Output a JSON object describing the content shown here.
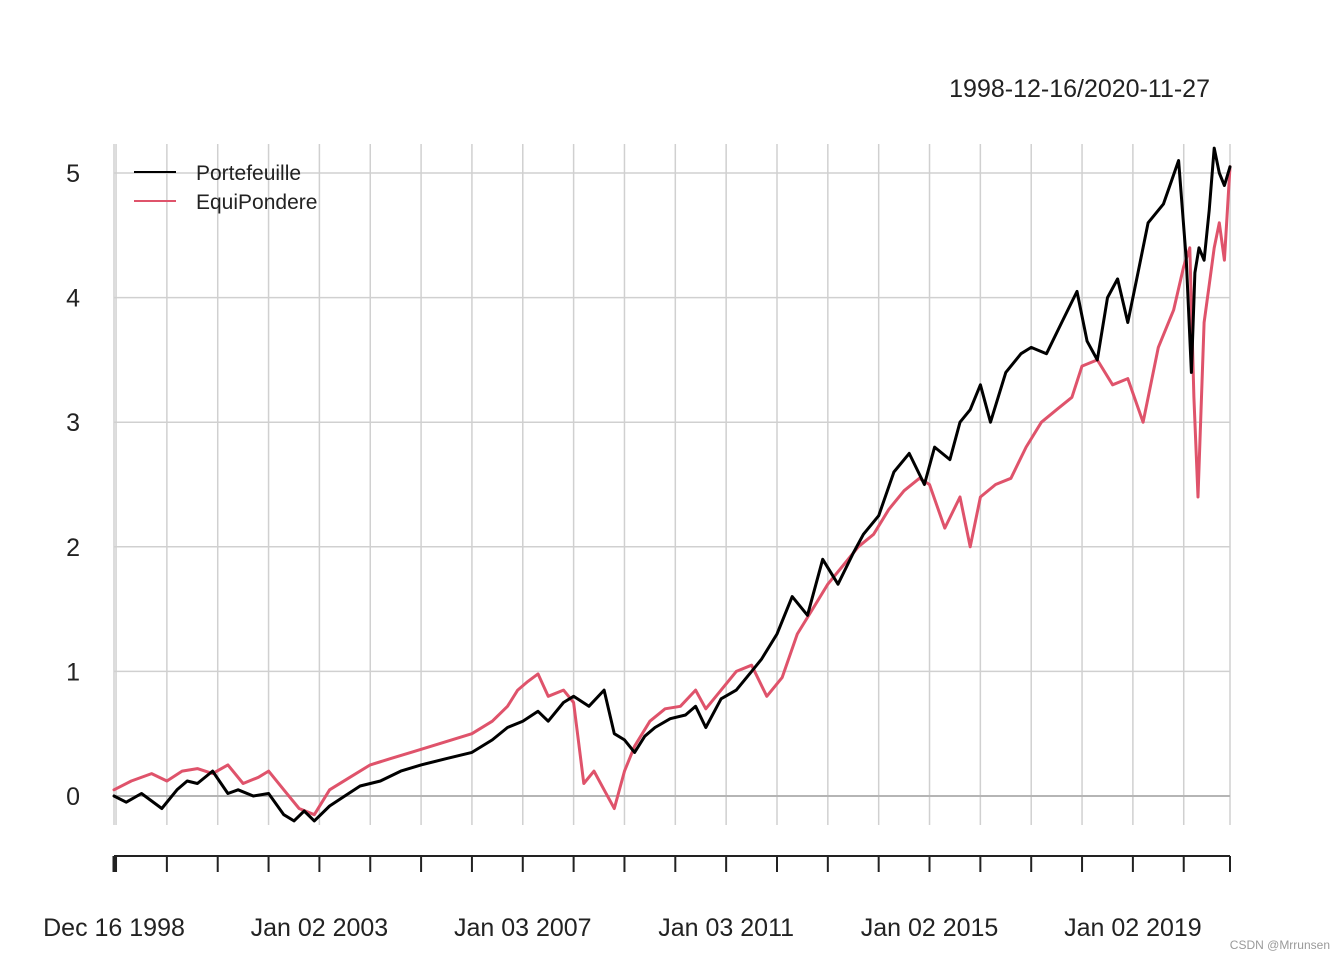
{
  "chart_data": {
    "type": "line",
    "title": "1998-12-16/2020-11-27",
    "xlabel": "",
    "ylabel": "",
    "ylim": [
      -0.5,
      5.2
    ],
    "yticks": [
      0,
      1,
      2,
      3,
      4,
      5
    ],
    "x_tick_labels": [
      "Dec 16 1998",
      "Jan 02 2003",
      "Jan 03 2007",
      "Jan 03 2011",
      "Jan 02 2015",
      "Jan 02 2019"
    ],
    "x_tick_years": [
      1998.96,
      2003.0,
      2007.0,
      2011.0,
      2015.0,
      2019.0
    ],
    "x_range": [
      1998.96,
      2020.91
    ],
    "grid": true,
    "legend_position": "top-left",
    "series": [
      {
        "name": "Portefeuille",
        "color": "#000000",
        "x": [
          1998.96,
          1999.2,
          1999.5,
          1999.9,
          2000.2,
          2000.4,
          2000.6,
          2000.9,
          2001.2,
          2001.4,
          2001.7,
          2002.0,
          2002.3,
          2002.5,
          2002.7,
          2002.9,
          2003.2,
          2003.5,
          2003.8,
          2004.2,
          2004.6,
          2005.0,
          2005.5,
          2006.0,
          2006.4,
          2006.7,
          2007.0,
          2007.3,
          2007.5,
          2007.8,
          2008.0,
          2008.3,
          2008.6,
          2008.8,
          2009.0,
          2009.2,
          2009.4,
          2009.6,
          2009.9,
          2010.2,
          2010.4,
          2010.6,
          2010.9,
          2011.2,
          2011.5,
          2011.7,
          2012.0,
          2012.3,
          2012.6,
          2012.9,
          2013.2,
          2013.5,
          2013.7,
          2014.0,
          2014.3,
          2014.6,
          2014.9,
          2015.1,
          2015.4,
          2015.6,
          2015.8,
          2016.0,
          2016.2,
          2016.5,
          2016.8,
          2017.0,
          2017.3,
          2017.6,
          2017.9,
          2018.1,
          2018.3,
          2018.5,
          2018.7,
          2018.9,
          2019.1,
          2019.3,
          2019.6,
          2019.9,
          2020.05,
          2020.15,
          2020.22,
          2020.3,
          2020.4,
          2020.5,
          2020.6,
          2020.7,
          2020.8,
          2020.91
        ],
        "values": [
          0.0,
          -0.05,
          0.02,
          -0.1,
          0.05,
          0.12,
          0.1,
          0.2,
          0.02,
          0.05,
          0.0,
          0.02,
          -0.15,
          -0.2,
          -0.12,
          -0.2,
          -0.08,
          0.0,
          0.08,
          0.12,
          0.2,
          0.25,
          0.3,
          0.35,
          0.45,
          0.55,
          0.6,
          0.68,
          0.6,
          0.75,
          0.8,
          0.72,
          0.85,
          0.5,
          0.45,
          0.35,
          0.48,
          0.55,
          0.62,
          0.65,
          0.72,
          0.55,
          0.78,
          0.85,
          1.0,
          1.1,
          1.3,
          1.6,
          1.45,
          1.9,
          1.7,
          1.95,
          2.1,
          2.25,
          2.6,
          2.75,
          2.5,
          2.8,
          2.7,
          3.0,
          3.1,
          3.3,
          3.0,
          3.4,
          3.55,
          3.6,
          3.55,
          3.8,
          4.05,
          3.65,
          3.5,
          4.0,
          4.15,
          3.8,
          4.2,
          4.6,
          4.75,
          5.1,
          4.3,
          3.4,
          4.2,
          4.4,
          4.3,
          4.7,
          5.2,
          5.0,
          4.9,
          5.05
        ]
      },
      {
        "name": "EquiPondere",
        "color": "#df536b",
        "x": [
          1998.96,
          1999.3,
          1999.7,
          2000.0,
          2000.3,
          2000.6,
          2000.9,
          2001.2,
          2001.5,
          2001.8,
          2002.0,
          2002.3,
          2002.6,
          2002.9,
          2003.2,
          2003.6,
          2004.0,
          2004.4,
          2004.8,
          2005.2,
          2005.6,
          2006.0,
          2006.4,
          2006.7,
          2006.9,
          2007.1,
          2007.3,
          2007.5,
          2007.8,
          2008.0,
          2008.2,
          2008.4,
          2008.6,
          2008.8,
          2009.0,
          2009.2,
          2009.5,
          2009.8,
          2010.1,
          2010.4,
          2010.6,
          2010.9,
          2011.2,
          2011.5,
          2011.8,
          2012.1,
          2012.4,
          2012.7,
          2013.0,
          2013.3,
          2013.6,
          2013.9,
          2014.2,
          2014.5,
          2014.8,
          2015.0,
          2015.3,
          2015.6,
          2015.8,
          2016.0,
          2016.3,
          2016.6,
          2016.9,
          2017.2,
          2017.5,
          2017.8,
          2018.0,
          2018.3,
          2018.6,
          2018.9,
          2019.2,
          2019.5,
          2019.8,
          2020.0,
          2020.12,
          2020.2,
          2020.28,
          2020.4,
          2020.5,
          2020.6,
          2020.7,
          2020.8,
          2020.91
        ],
        "values": [
          0.05,
          0.12,
          0.18,
          0.12,
          0.2,
          0.22,
          0.18,
          0.25,
          0.1,
          0.15,
          0.2,
          0.05,
          -0.1,
          -0.15,
          0.05,
          0.15,
          0.25,
          0.3,
          0.35,
          0.4,
          0.45,
          0.5,
          0.6,
          0.72,
          0.85,
          0.92,
          0.98,
          0.8,
          0.85,
          0.75,
          0.1,
          0.2,
          0.05,
          -0.1,
          0.2,
          0.4,
          0.6,
          0.7,
          0.72,
          0.85,
          0.7,
          0.85,
          1.0,
          1.05,
          0.8,
          0.95,
          1.3,
          1.5,
          1.7,
          1.85,
          2.0,
          2.1,
          2.3,
          2.45,
          2.55,
          2.5,
          2.15,
          2.4,
          2.0,
          2.4,
          2.5,
          2.55,
          2.8,
          3.0,
          3.1,
          3.2,
          3.45,
          3.5,
          3.3,
          3.35,
          3.0,
          3.6,
          3.9,
          4.25,
          4.4,
          3.2,
          2.4,
          3.8,
          4.1,
          4.4,
          4.6,
          4.3,
          5.05
        ]
      }
    ]
  },
  "watermark": "CSDN @Mrrunsen"
}
